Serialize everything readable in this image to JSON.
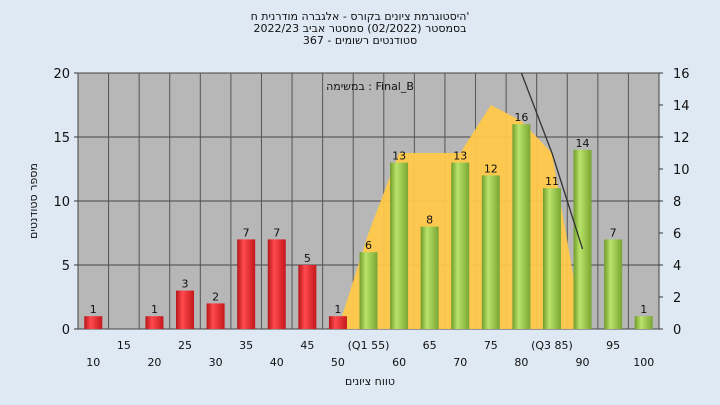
{
  "titles": {
    "line1": "היסטוגרמת ציונים בקורס - אלגברה מודרנית ח'",
    "line2": "בסמסטר  (02/2022)  סמסטר אביב 2022/23",
    "line3": "סטודנטים רשומים - 367"
  },
  "chart_data": {
    "type": "bar",
    "annotation": "במשימה : Final_B",
    "ylabel": "מספר סטודנטים",
    "xlabel": "טווח ציונים",
    "ylim": [
      0,
      20
    ],
    "y_ticks": [
      0,
      5,
      10,
      15,
      20
    ],
    "y2lim": [
      0,
      16
    ],
    "y2_ticks": [
      0,
      2,
      4,
      6,
      8,
      10,
      12,
      14,
      16
    ],
    "grid": true,
    "categories": [
      "10",
      "15",
      "20",
      "25",
      "30",
      "35",
      "40",
      "45",
      "50",
      "55",
      "60",
      "65",
      "70",
      "75",
      "80",
      "85",
      "90",
      "95",
      "100"
    ],
    "x_upper_labels": [
      "",
      "15",
      "",
      "25",
      "",
      "35",
      "",
      "45",
      "",
      "(Q1 55)",
      "",
      "65",
      "",
      "75",
      "",
      "(Q3 85)",
      "",
      "95",
      ""
    ],
    "x_lower_labels": [
      "10",
      "",
      "20",
      "",
      "30",
      "",
      "40",
      "",
      "50",
      "",
      "60",
      "",
      "70",
      "",
      "80",
      "",
      "90",
      "",
      "100"
    ],
    "values": [
      1,
      0,
      1,
      3,
      2,
      7,
      7,
      5,
      1,
      6,
      13,
      8,
      13,
      12,
      16,
      11,
      14,
      7,
      1
    ],
    "bar_colors": [
      "red",
      "red",
      "red",
      "red",
      "red",
      "red",
      "red",
      "red",
      "red",
      "green",
      "green",
      "green",
      "green",
      "green",
      "green",
      "green",
      "green",
      "green",
      "green"
    ],
    "colors": {
      "red": "#e8262c",
      "green": "#9acd48",
      "area": "#ffc84a",
      "line": "#333333"
    },
    "area_series": {
      "x": [
        "50",
        "55",
        "60",
        "65",
        "70",
        "75",
        "80",
        "85",
        "90"
      ],
      "values": [
        0,
        6,
        11,
        11,
        11,
        14,
        13,
        11,
        0
      ]
    },
    "line_series": {
      "x": [
        "80",
        "85",
        "90"
      ],
      "values": [
        16,
        11,
        5
      ]
    }
  }
}
